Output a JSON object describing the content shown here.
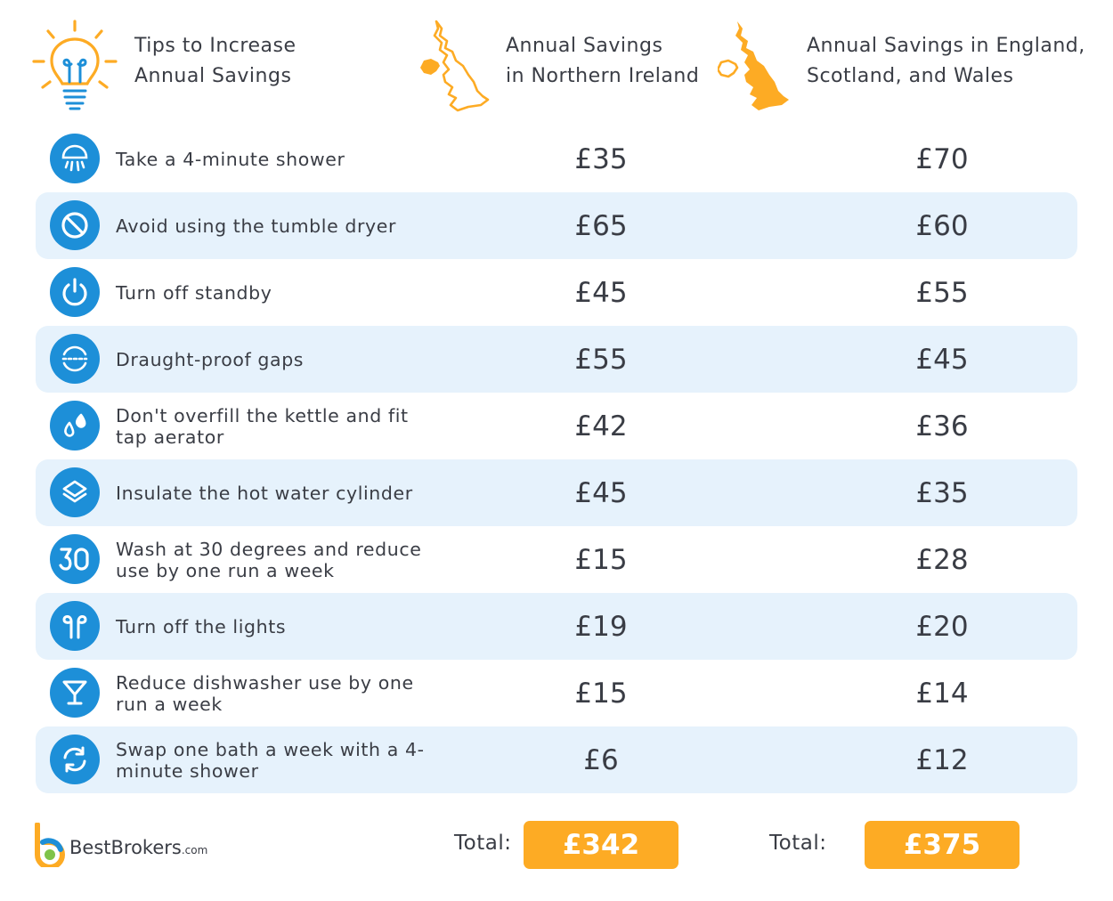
{
  "header": {
    "tips_line1": "Tips to Increase",
    "tips_line2": "Annual Savings",
    "ni_line1": "Annual Savings",
    "ni_line2": "in Northern Ireland",
    "gb_line1": "Annual Savings in England,",
    "gb_line2": "Scotland, and Wales",
    "icons": [
      "lightbulb-icon",
      "northern-ireland-map-icon",
      "great-britain-map-icon"
    ]
  },
  "rows": [
    {
      "icon": "shower-icon",
      "tip": "Take a 4-minute shower",
      "ni": "£35",
      "gb": "£70"
    },
    {
      "icon": "prohibited-icon",
      "tip": "Avoid using the tumble dryer",
      "ni": "£65",
      "gb": "£60"
    },
    {
      "icon": "power-icon",
      "tip": "Turn off standby",
      "ni": "£45",
      "gb": "£55"
    },
    {
      "icon": "draught-icon",
      "tip": "Draught-proof gaps",
      "ni": "£55",
      "gb": "£45"
    },
    {
      "icon": "water-drops-icon",
      "tip": "Don't overfill the kettle and fit tap aerator",
      "ni": "£42",
      "gb": "£36"
    },
    {
      "icon": "layers-icon",
      "tip": "Insulate the hot water cylinder",
      "ni": "£45",
      "gb": "£35"
    },
    {
      "icon": "thirty-degrees-icon",
      "tip": "Wash at 30 degrees and reduce use by one run a week",
      "ni": "£15",
      "gb": "£28"
    },
    {
      "icon": "lamp-icon",
      "tip": "Turn off the lights",
      "ni": "£19",
      "gb": "£20"
    },
    {
      "icon": "glass-icon",
      "tip": "Reduce dishwasher use by one run a week",
      "ni": "£15",
      "gb": "£14"
    },
    {
      "icon": "refresh-icon",
      "tip": "Swap one bath a week with a 4-minute shower",
      "ni": "£6",
      "gb": "£12"
    }
  ],
  "footer": {
    "brand": "BestBrokers",
    "brand_suffix": ".com",
    "total_label": "Total:",
    "total_ni": "£342",
    "total_gb": "£375"
  },
  "colors": {
    "accent_blue": "#1d8fd8",
    "row_shade": "#e6f2fc",
    "accent_orange": "#fdab24",
    "text": "#3a3d45"
  }
}
